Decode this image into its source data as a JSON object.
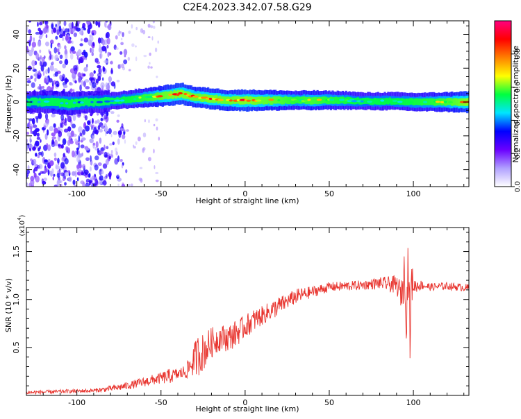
{
  "title": "C2E4.2023.342.07.58.G29",
  "chart_data": [
    {
      "type": "heatmap",
      "xlabel": "Height of straight line (km)",
      "ylabel": "Frequency (Hz)",
      "xlim": [
        -130,
        133
      ],
      "ylim": [
        -50,
        48
      ],
      "x_ticks": [
        -100,
        -50,
        0,
        50,
        100
      ],
      "y_ticks": [
        -40,
        -20,
        0,
        20,
        40
      ],
      "colorbar": {
        "label": "Normalized spectral amplitude",
        "range": [
          0,
          1
        ],
        "ticks": [
          0.0,
          0.2,
          0.4,
          0.6,
          0.8
        ],
        "tick_labels": [
          "0.0",
          "0.2",
          "0.4",
          "0.6",
          "0.8"
        ],
        "colors": [
          "#ffffff",
          "#b0a0ff",
          "#6a00ff",
          "#0000ff",
          "#00e5ff",
          "#00ff40",
          "#ffff00",
          "#ff8000",
          "#ff0000",
          "#ff0080"
        ]
      },
      "ridge": {
        "x": [
          -128,
          -115,
          -105,
          -95,
          -85,
          -75,
          -65,
          -55,
          -45,
          -38,
          -30,
          -20,
          -10,
          0,
          10,
          20,
          30,
          40,
          50,
          60,
          70,
          80,
          90,
          100,
          110,
          120,
          133
        ],
        "frequency": [
          0,
          0,
          -1,
          0,
          0,
          1,
          2,
          3,
          4,
          5,
          3,
          2,
          1,
          1,
          1,
          1,
          1,
          1,
          1,
          1,
          0.5,
          0.5,
          0.5,
          0,
          0,
          0,
          0
        ],
        "amplitude": [
          0.35,
          0.45,
          0.5,
          0.4,
          0.4,
          0.45,
          0.55,
          0.7,
          0.85,
          0.9,
          0.8,
          0.85,
          0.8,
          0.9,
          0.8,
          0.75,
          0.6,
          0.7,
          0.6,
          0.55,
          0.45,
          0.5,
          0.5,
          0.55,
          0.6,
          0.7,
          0.9
        ]
      },
      "noise_region_x": [
        -130,
        -80
      ]
    },
    {
      "type": "line",
      "xlabel": "Height of straight line (km)",
      "ylabel": "SNR (10 * v/v)",
      "y_multiplier": "(x10",
      "y_multiplier_exp": "4",
      "y_multiplier_close": ")",
      "xlim": [
        -130,
        133
      ],
      "ylim": [
        0,
        1.75
      ],
      "x_ticks": [
        -100,
        -50,
        0,
        50,
        100
      ],
      "y_ticks": [
        0.5,
        1.0,
        1.5
      ],
      "y_tick_labels": [
        "0.5",
        "1.0",
        "1.5"
      ],
      "color": "#e8352f",
      "series": [
        {
          "x": [
            -130,
            -110,
            -90,
            -80,
            -70,
            -60,
            -50,
            -45,
            -40,
            -35,
            -30,
            -28,
            -25,
            -20,
            -15,
            -10,
            -5,
            0,
            5,
            10,
            15,
            20,
            25,
            30,
            40,
            50,
            60,
            70,
            80,
            85,
            90,
            93,
            95,
            96,
            97,
            98,
            99,
            100,
            105,
            110,
            120,
            133
          ],
          "y": [
            0.03,
            0.04,
            0.05,
            0.07,
            0.1,
            0.14,
            0.18,
            0.2,
            0.22,
            0.25,
            0.38,
            0.42,
            0.45,
            0.55,
            0.6,
            0.6,
            0.65,
            0.72,
            0.78,
            0.83,
            0.88,
            0.93,
            0.98,
            1.03,
            1.08,
            1.13,
            1.14,
            1.15,
            1.17,
            1.16,
            1.15,
            1.05,
            1.3,
            0.8,
            1.5,
            0.6,
            1.2,
            1.14,
            1.15,
            1.13,
            1.14,
            1.12
          ],
          "noise_amplitude": [
            0.02,
            0.02,
            0.02,
            0.03,
            0.04,
            0.05,
            0.06,
            0.08,
            0.06,
            0.08,
            0.18,
            0.22,
            0.2,
            0.16,
            0.14,
            0.14,
            0.14,
            0.12,
            0.12,
            0.1,
            0.1,
            0.1,
            0.08,
            0.08,
            0.06,
            0.05,
            0.05,
            0.05,
            0.06,
            0.08,
            0.1,
            0.15,
            0.3,
            0.35,
            0.3,
            0.3,
            0.25,
            0.08,
            0.05,
            0.04,
            0.04,
            0.04
          ]
        }
      ]
    }
  ]
}
